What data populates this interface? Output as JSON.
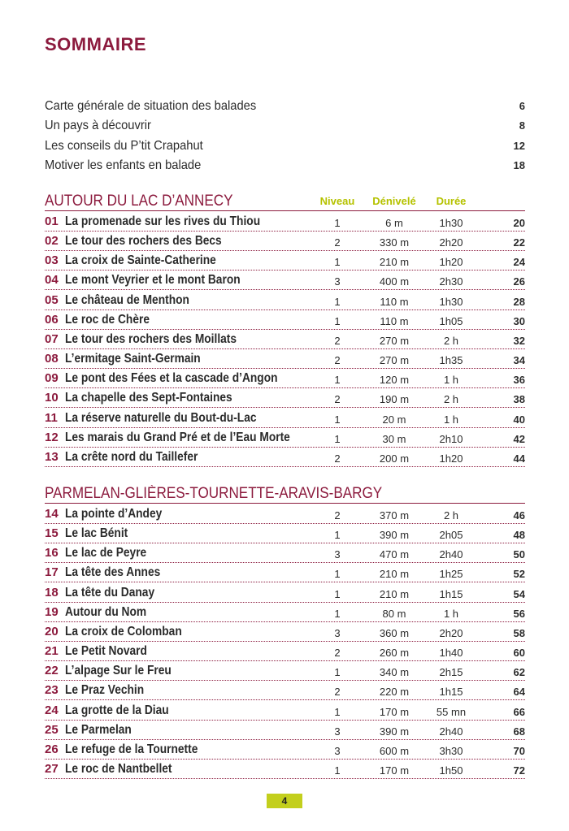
{
  "title": "SOMMAIRE",
  "intro": [
    {
      "text": "Carte générale de situation des balades",
      "page": "6"
    },
    {
      "text": "Un pays à découvrir",
      "page": "8"
    },
    {
      "text": "Les conseils du P’tit Crapahut",
      "page": "12"
    },
    {
      "text": "Motiver les enfants en balade",
      "page": "18"
    }
  ],
  "columns": {
    "niveau": "Niveau",
    "denivele": "Dénivelé",
    "duree": "Durée"
  },
  "sections": [
    {
      "title": "AUTOUR DU LAC D’ANNECY",
      "rows": [
        {
          "num": "01",
          "title": "La promenade sur les rives du Thiou",
          "niveau": "1",
          "denivele": "6 m",
          "duree": "1h30",
          "page": "20"
        },
        {
          "num": "02",
          "title": "Le tour des rochers des Becs",
          "niveau": "2",
          "denivele": "330 m",
          "duree": "2h20",
          "page": "22"
        },
        {
          "num": "03",
          "title": "La croix de Sainte-Catherine",
          "niveau": "1",
          "denivele": "210 m",
          "duree": "1h20",
          "page": "24"
        },
        {
          "num": "04",
          "title": "Le mont Veyrier et le mont Baron",
          "niveau": "3",
          "denivele": "400 m",
          "duree": "2h30",
          "page": "26"
        },
        {
          "num": "05",
          "title": "Le château de Menthon",
          "niveau": "1",
          "denivele": "110 m",
          "duree": "1h30",
          "page": "28"
        },
        {
          "num": "06",
          "title": "Le roc de Chère",
          "niveau": "1",
          "denivele": "110 m",
          "duree": "1h05",
          "page": "30"
        },
        {
          "num": "07",
          "title": "Le tour des rochers des Moillats",
          "niveau": "2",
          "denivele": "270 m",
          "duree": "2 h",
          "page": "32"
        },
        {
          "num": "08",
          "title": "L’ermitage Saint-Germain",
          "niveau": "2",
          "denivele": "270 m",
          "duree": "1h35",
          "page": "34"
        },
        {
          "num": "09",
          "title": "Le pont des Fées et la cascade d’Angon",
          "niveau": "1",
          "denivele": "120 m",
          "duree": "1 h",
          "page": "36"
        },
        {
          "num": "10",
          "title": "La chapelle des Sept-Fontaines",
          "niveau": "2",
          "denivele": "190 m",
          "duree": "2 h",
          "page": "38"
        },
        {
          "num": "11",
          "title": "La réserve naturelle du Bout-du-Lac",
          "niveau": "1",
          "denivele": "20 m",
          "duree": "1 h",
          "page": "40"
        },
        {
          "num": "12",
          "title": "Les marais du Grand Pré et de l’Eau Morte",
          "niveau": "1",
          "denivele": "30 m",
          "duree": "2h10",
          "page": "42"
        },
        {
          "num": "13",
          "title": "La crête nord du Taillefer",
          "niveau": "2",
          "denivele": "200 m",
          "duree": "1h20",
          "page": "44"
        }
      ]
    },
    {
      "title": "PARMELAN-GLIÈRES-TOURNETTE-ARAVIS-BARGY",
      "rows": [
        {
          "num": "14",
          "title": "La pointe d’Andey",
          "niveau": "2",
          "denivele": "370 m",
          "duree": "2 h",
          "page": "46"
        },
        {
          "num": "15",
          "title": "Le lac Bénit",
          "niveau": "1",
          "denivele": "390 m",
          "duree": "2h05",
          "page": "48"
        },
        {
          "num": "16",
          "title": "Le lac de Peyre",
          "niveau": "3",
          "denivele": "470 m",
          "duree": "2h40",
          "page": "50"
        },
        {
          "num": "17",
          "title": "La tête des Annes",
          "niveau": "1",
          "denivele": "210 m",
          "duree": "1h25",
          "page": "52"
        },
        {
          "num": "18",
          "title": "La tête du Danay",
          "niveau": "1",
          "denivele": "210 m",
          "duree": "1h15",
          "page": "54"
        },
        {
          "num": "19",
          "title": "Autour du Nom",
          "niveau": "1",
          "denivele": "80 m",
          "duree": "1 h",
          "page": "56"
        },
        {
          "num": "20",
          "title": "La croix de Colomban",
          "niveau": "3",
          "denivele": "360 m",
          "duree": "2h20",
          "page": "58"
        },
        {
          "num": "21",
          "title": "Le Petit Novard",
          "niveau": "2",
          "denivele": "260 m",
          "duree": "1h40",
          "page": "60"
        },
        {
          "num": "22",
          "title": "L’alpage Sur le Freu",
          "niveau": "1",
          "denivele": "340 m",
          "duree": "2h15",
          "page": "62"
        },
        {
          "num": "23",
          "title": "Le Praz Vechin",
          "niveau": "2",
          "denivele": "220 m",
          "duree": "1h15",
          "page": "64"
        },
        {
          "num": "24",
          "title": "La grotte de la Diau",
          "niveau": "1",
          "denivele": "170 m",
          "duree": "55 mn",
          "page": "66"
        },
        {
          "num": "25",
          "title": "Le Parmelan",
          "niveau": "3",
          "denivele": "390 m",
          "duree": "2h40",
          "page": "68"
        },
        {
          "num": "26",
          "title": "Le refuge de la Tournette",
          "niveau": "3",
          "denivele": "600 m",
          "duree": "3h30",
          "page": "70"
        },
        {
          "num": "27",
          "title": "Le roc de Nantbellet",
          "niveau": "1",
          "denivele": "170 m",
          "duree": "1h50",
          "page": "72"
        }
      ]
    }
  ],
  "footer": {
    "page_number": "4"
  }
}
